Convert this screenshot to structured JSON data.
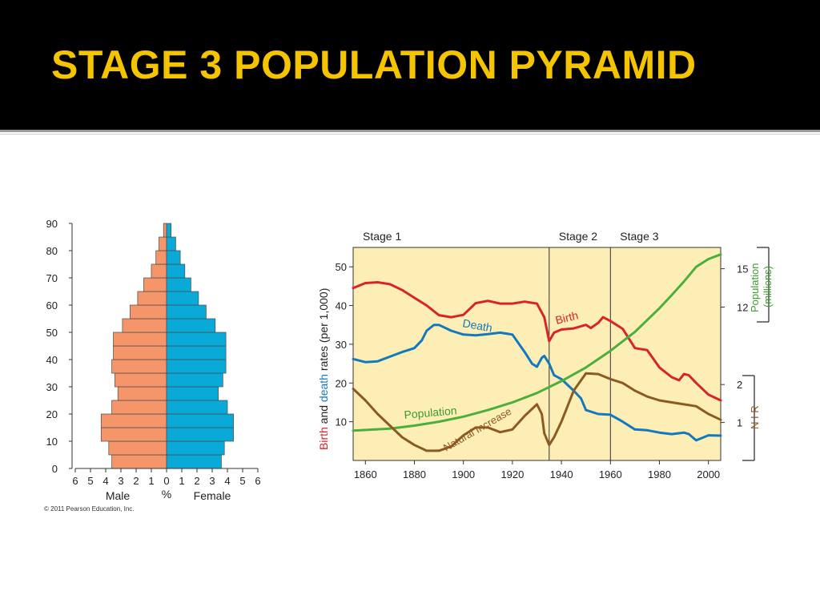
{
  "slide": {
    "title": "STAGE 3 POPULATION PYRAMID",
    "title_color": "#f5c400",
    "header_background": "#000000"
  },
  "chart_data": [
    {
      "type": "bar",
      "subtype": "population-pyramid",
      "categories": [
        "0",
        "5",
        "10",
        "15",
        "20",
        "25",
        "30",
        "35",
        "40",
        "45",
        "50",
        "55",
        "60",
        "65",
        "70",
        "75",
        "80",
        "85"
      ],
      "series": [
        {
          "name": "Male",
          "color": "#f4956a",
          "values": [
            3.6,
            3.8,
            4.3,
            4.3,
            3.6,
            3.2,
            3.4,
            3.6,
            3.5,
            3.5,
            2.9,
            2.4,
            1.9,
            1.5,
            1.0,
            0.7,
            0.5,
            0.2
          ]
        },
        {
          "name": "Female",
          "color": "#0aaad8",
          "values": [
            3.6,
            3.8,
            4.4,
            4.4,
            4.0,
            3.4,
            3.7,
            3.9,
            3.9,
            3.9,
            3.2,
            2.6,
            2.1,
            1.6,
            1.2,
            0.9,
            0.6,
            0.3
          ]
        }
      ],
      "ylim": [
        0,
        90
      ],
      "yticks": [
        "0",
        "10",
        "20",
        "30",
        "40",
        "50",
        "60",
        "70",
        "80",
        "90"
      ],
      "xlim": [
        -6,
        6
      ],
      "xticks": [
        "6",
        "5",
        "4",
        "3",
        "2",
        "1",
        "0",
        "1",
        "2",
        "3",
        "4",
        "5",
        "6"
      ],
      "xlabel_left": "Male",
      "xlabel_center": "%",
      "xlabel_right": "Female",
      "credit": "© 2011 Pearson Education, Inc."
    },
    {
      "type": "line",
      "xlim": [
        1855,
        2005
      ],
      "xticks": [
        "1860",
        "1880",
        "1900",
        "1920",
        "1940",
        "1960",
        "1980",
        "2000"
      ],
      "background": "#fdeeb5",
      "y_left": {
        "lim": [
          0,
          55
        ],
        "ticks": [
          "10",
          "20",
          "30",
          "40",
          "50"
        ],
        "label_parts": [
          "Birth",
          " and ",
          "death",
          " rates (per 1,000)"
        ]
      },
      "y_right_population": {
        "ticks": [
          "15",
          "12"
        ],
        "label_line1": "Population",
        "label_line2": "(millions)"
      },
      "y_right_nir": {
        "ticks": [
          "2",
          "1"
        ],
        "label": "N I R"
      },
      "stages": [
        {
          "label": "Stage 1",
          "x": 1855
        },
        {
          "label": "Stage 2",
          "x": 1935
        },
        {
          "label": "Stage 3",
          "x": 1960
        }
      ],
      "stage_dividers": [
        1935,
        1960
      ],
      "series": [
        {
          "name": "Birth",
          "color": "#d8232a",
          "x": [
            1855,
            1860,
            1865,
            1870,
            1875,
            1880,
            1885,
            1890,
            1895,
            1900,
            1905,
            1910,
            1915,
            1920,
            1925,
            1930,
            1933,
            1935,
            1937,
            1940,
            1945,
            1950,
            1952,
            1955,
            1957,
            1960,
            1965,
            1970,
            1975,
            1980,
            1985,
            1988,
            1990,
            1992,
            1995,
            2000,
            2005
          ],
          "values": [
            44.5,
            45.8,
            46,
            45.5,
            44,
            42,
            40,
            37.5,
            37,
            37.6,
            40.6,
            41.2,
            40.5,
            40.5,
            41,
            40.5,
            37,
            30.8,
            33,
            33.8,
            34.1,
            35,
            34.2,
            35.5,
            37,
            36,
            34,
            29,
            28.5,
            24,
            21.5,
            20.7,
            22.3,
            22,
            20,
            17,
            15.5
          ]
        },
        {
          "name": "Death",
          "color": "#1478be",
          "x": [
            1855,
            1860,
            1865,
            1870,
            1875,
            1880,
            1883,
            1885,
            1888,
            1890,
            1895,
            1900,
            1905,
            1910,
            1915,
            1920,
            1925,
            1928,
            1930,
            1932,
            1933,
            1935,
            1937,
            1940,
            1945,
            1948,
            1950,
            1955,
            1960,
            1965,
            1970,
            1975,
            1980,
            1985,
            1990,
            1992,
            1995,
            2000,
            2005
          ],
          "values": [
            26.2,
            25.4,
            25.6,
            26.8,
            28,
            29,
            31,
            33.5,
            35,
            35,
            33.5,
            32.5,
            32.3,
            32.6,
            33,
            32.5,
            28,
            25,
            24.2,
            26.5,
            27,
            25,
            22,
            21,
            18,
            16,
            13,
            12,
            11.8,
            10,
            8,
            7.8,
            7.2,
            6.8,
            7.2,
            6.8,
            5.2,
            6.5,
            6.4
          ]
        },
        {
          "name": "Population",
          "color": "#4caf3c",
          "x": [
            1855,
            1870,
            1880,
            1890,
            1900,
            1910,
            1920,
            1930,
            1940,
            1950,
            1960,
            1970,
            1980,
            1985,
            1990,
            1995,
            2000,
            2005
          ],
          "values": [
            7.7,
            8.2,
            9.0,
            10.0,
            11.3,
            13.0,
            15.0,
            17.4,
            20.5,
            24.0,
            28.3,
            33.2,
            39.3,
            42.7,
            46.2,
            50.0,
            52.0,
            53.2
          ]
        },
        {
          "name": "Natural Increase",
          "color": "#8b5a22",
          "x": [
            1855,
            1860,
            1865,
            1870,
            1875,
            1880,
            1885,
            1890,
            1895,
            1900,
            1905,
            1910,
            1915,
            1920,
            1925,
            1930,
            1932,
            1933,
            1935,
            1937,
            1940,
            1945,
            1950,
            1955,
            1960,
            1965,
            1970,
            1975,
            1980,
            1985,
            1990,
            1995,
            2000,
            2005
          ],
          "values": [
            18.5,
            15.5,
            12,
            9,
            6,
            4,
            2.5,
            2.5,
            3.6,
            6.5,
            8.5,
            8.5,
            7.3,
            8,
            11.5,
            14.5,
            12,
            7,
            4,
            6,
            10,
            18,
            22.5,
            22.3,
            21,
            20,
            18,
            16.5,
            15.5,
            15,
            14.5,
            14,
            12,
            10.5
          ]
        }
      ]
    }
  ]
}
